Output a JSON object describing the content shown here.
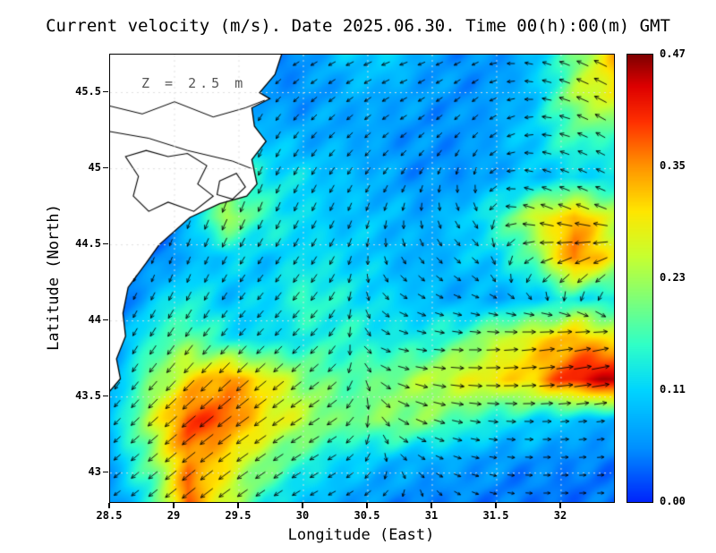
{
  "title": "Current velocity (m/s). Date 2025.06.30. Time 00(h):00(m) GMT",
  "annotation": "Z = 2.5 m",
  "axes": {
    "xlabel": "Longitude (East)",
    "ylabel": "Latitude (North)",
    "x_ticks": [
      28.5,
      29,
      29.5,
      30,
      30.5,
      31,
      31.5,
      32
    ],
    "x_tick_labels": [
      "28.5",
      "29",
      "29.5",
      "30",
      "30.5",
      "31",
      "31.5",
      "32"
    ],
    "y_ticks": [
      43,
      43.5,
      44,
      44.5,
      45,
      45.5
    ],
    "y_tick_labels": [
      "43",
      "43.5",
      "44",
      "44.5",
      "45",
      "45.5"
    ],
    "lon_range": [
      28.5,
      32.41
    ],
    "lat_range": [
      42.81,
      45.75
    ],
    "grid_lon": [
      29,
      29.5,
      30,
      30.5,
      31,
      31.5,
      32
    ],
    "grid_lat": [
      43,
      43.5,
      44,
      44.5,
      45,
      45.5
    ]
  },
  "colorbar": {
    "min": 0.0,
    "max": 0.47,
    "tick_labels": [
      "0.47",
      "0.35",
      "0.23",
      "0.11",
      "0.00"
    ],
    "stops": [
      {
        "t": 0.0,
        "c": "#0025FB"
      },
      {
        "t": 0.12,
        "c": "#0090FF"
      },
      {
        "t": 0.25,
        "c": "#00D5FF"
      },
      {
        "t": 0.35,
        "c": "#2FFFC8"
      },
      {
        "t": 0.45,
        "c": "#7CFF7A"
      },
      {
        "t": 0.55,
        "c": "#C8FF2F"
      },
      {
        "t": 0.65,
        "c": "#FFE600"
      },
      {
        "t": 0.75,
        "c": "#FF9400"
      },
      {
        "t": 0.85,
        "c": "#FF3000"
      },
      {
        "t": 0.93,
        "c": "#DD0000"
      },
      {
        "t": 1.0,
        "c": "#800000"
      }
    ]
  },
  "chart_data": {
    "type": "heatmap",
    "field": "current_speed",
    "units": "m/s",
    "depth_m": 2.5,
    "lon_range": [
      28.5,
      32.41
    ],
    "lat_range": [
      42.81,
      45.75
    ],
    "speed_max": 0.47,
    "speed_grid_rows_top_to_bottom": [
      [
        0.0,
        0.0,
        0.0,
        0.04,
        0.05,
        0.06,
        0.1,
        0.12,
        0.08,
        0.06,
        0.06,
        0.1,
        0.2,
        0.33
      ],
      [
        0.0,
        0.0,
        0.0,
        0.05,
        0.06,
        0.06,
        0.08,
        0.08,
        0.07,
        0.06,
        0.07,
        0.1,
        0.24,
        0.3
      ],
      [
        0.0,
        0.0,
        0.0,
        0.14,
        0.1,
        0.08,
        0.08,
        0.07,
        0.06,
        0.06,
        0.08,
        0.12,
        0.18,
        0.16
      ],
      [
        0.0,
        0.0,
        0.06,
        0.2,
        0.14,
        0.12,
        0.1,
        0.08,
        0.06,
        0.06,
        0.08,
        0.1,
        0.12,
        0.12
      ],
      [
        0.0,
        0.0,
        0.1,
        0.24,
        0.16,
        0.12,
        0.1,
        0.1,
        0.08,
        0.1,
        0.16,
        0.27,
        0.34,
        0.26
      ],
      [
        0.0,
        0.04,
        0.08,
        0.12,
        0.1,
        0.13,
        0.12,
        0.1,
        0.08,
        0.1,
        0.12,
        0.2,
        0.38,
        0.28
      ],
      [
        0.0,
        0.1,
        0.15,
        0.1,
        0.12,
        0.17,
        0.14,
        0.12,
        0.1,
        0.08,
        0.08,
        0.1,
        0.15,
        0.12
      ],
      [
        0.05,
        0.16,
        0.2,
        0.14,
        0.12,
        0.14,
        0.16,
        0.14,
        0.14,
        0.18,
        0.25,
        0.3,
        0.34,
        0.3
      ],
      [
        0.08,
        0.2,
        0.3,
        0.36,
        0.3,
        0.22,
        0.18,
        0.2,
        0.24,
        0.28,
        0.3,
        0.33,
        0.42,
        0.46
      ],
      [
        0.1,
        0.25,
        0.4,
        0.38,
        0.3,
        0.25,
        0.2,
        0.22,
        0.22,
        0.18,
        0.14,
        0.12,
        0.1,
        0.08
      ],
      [
        0.08,
        0.2,
        0.36,
        0.3,
        0.22,
        0.16,
        0.12,
        0.1,
        0.08,
        0.08,
        0.06,
        0.06,
        0.05,
        0.05
      ],
      [
        0.06,
        0.15,
        0.38,
        0.26,
        0.15,
        0.1,
        0.08,
        0.06,
        0.05,
        0.05,
        0.05,
        0.04,
        0.04,
        0.04
      ]
    ],
    "vectors": {
      "u_rows_top_to_bottom": [
        [
          -0.2,
          -0.2,
          -0.3,
          -0.4,
          -0.3,
          -0.2,
          -0.3,
          -0.4
        ],
        [
          -0.2,
          -0.2,
          -0.2,
          -0.3,
          -0.3,
          -0.2,
          -0.2,
          -0.3
        ],
        [
          -0.1,
          -0.1,
          -0.2,
          -0.2,
          -0.1,
          0.1,
          -0.5,
          -0.7
        ],
        [
          -0.1,
          -0.2,
          -0.3,
          -0.2,
          0.2,
          0.3,
          -0.2,
          -0.5
        ],
        [
          -0.2,
          -0.4,
          -0.4,
          -0.2,
          0.4,
          0.6,
          0.8,
          0.9
        ],
        [
          -0.3,
          -0.6,
          -0.7,
          -0.5,
          0.3,
          0.5,
          0.7,
          0.8
        ],
        [
          -0.3,
          -0.5,
          -0.6,
          -0.4,
          -0.1,
          0.2,
          0.3,
          0.4
        ]
      ],
      "v_rows_top_to_bottom": [
        [
          -0.1,
          -0.1,
          -0.2,
          -0.2,
          -0.1,
          -0.1,
          0.1,
          0.2
        ],
        [
          -0.2,
          -0.3,
          -0.4,
          -0.3,
          -0.2,
          -0.2,
          0.0,
          0.2
        ],
        [
          -0.2,
          -0.3,
          -0.5,
          -0.4,
          -0.3,
          -0.2,
          0.2,
          0.3
        ],
        [
          -0.2,
          -0.5,
          -0.4,
          -0.3,
          -0.2,
          -0.2,
          -0.2,
          -0.4
        ],
        [
          -0.4,
          -0.5,
          -0.4,
          -0.2,
          -0.1,
          0.0,
          0.1,
          0.2
        ],
        [
          -0.3,
          -0.5,
          -0.5,
          -0.3,
          -0.2,
          -0.1,
          0.0,
          0.1
        ],
        [
          -0.2,
          -0.4,
          -0.4,
          -0.2,
          -0.1,
          -0.1,
          0.0,
          0.0
        ]
      ]
    },
    "coastline_land_polygon": [
      [
        29.85,
        45.8
      ],
      [
        29.78,
        45.62
      ],
      [
        29.66,
        45.5
      ],
      [
        29.74,
        45.46
      ],
      [
        29.6,
        45.4
      ],
      [
        29.62,
        45.28
      ],
      [
        29.71,
        45.18
      ],
      [
        29.6,
        45.06
      ],
      [
        29.64,
        44.9
      ],
      [
        29.56,
        44.82
      ],
      [
        29.35,
        44.77
      ],
      [
        29.12,
        44.68
      ],
      [
        28.88,
        44.5
      ],
      [
        28.78,
        44.38
      ],
      [
        28.64,
        44.22
      ],
      [
        28.6,
        44.05
      ],
      [
        28.62,
        43.9
      ],
      [
        28.55,
        43.75
      ],
      [
        28.58,
        43.62
      ],
      [
        28.46,
        43.5
      ],
      [
        28.44,
        43.48
      ],
      [
        28.44,
        45.8
      ]
    ],
    "lakes": [
      [
        [
          28.62,
          45.08
        ],
        [
          28.78,
          45.12
        ],
        [
          28.95,
          45.08
        ],
        [
          29.1,
          45.1
        ],
        [
          29.25,
          45.02
        ],
        [
          29.18,
          44.9
        ],
        [
          29.3,
          44.82
        ],
        [
          29.15,
          44.72
        ],
        [
          28.95,
          44.78
        ],
        [
          28.8,
          44.72
        ],
        [
          28.68,
          44.82
        ],
        [
          28.72,
          44.95
        ]
      ],
      [
        [
          29.35,
          44.92
        ],
        [
          29.48,
          44.97
        ],
        [
          29.55,
          44.88
        ],
        [
          29.45,
          44.8
        ],
        [
          29.33,
          44.83
        ]
      ]
    ],
    "rivers": [
      [
        [
          28.46,
          45.42
        ],
        [
          28.75,
          45.36
        ],
        [
          29.0,
          45.44
        ],
        [
          29.3,
          45.34
        ],
        [
          29.55,
          45.4
        ],
        [
          29.7,
          45.45
        ]
      ],
      [
        [
          28.46,
          45.25
        ],
        [
          28.8,
          45.2
        ],
        [
          29.1,
          45.12
        ],
        [
          29.45,
          45.05
        ],
        [
          29.6,
          45.0
        ]
      ]
    ]
  }
}
